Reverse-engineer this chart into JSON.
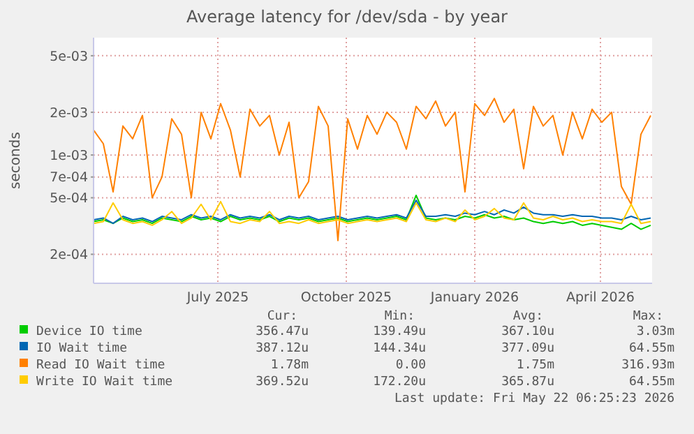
{
  "chart_data": {
    "type": "line",
    "title": "Average latency for /dev/sda - by year",
    "ylabel": "seconds",
    "log": "y",
    "grid": true,
    "legend": "bottom",
    "xlim": [
      "2025-04-17",
      "2026-05-22"
    ],
    "xticks": [
      {
        "value": "2025-07-15",
        "label": "July 2025"
      },
      {
        "value": "2025-10-15",
        "label": "October 2025"
      },
      {
        "value": "2026-01-15",
        "label": "January 2026"
      },
      {
        "value": "2026-04-15",
        "label": "April 2026"
      }
    ],
    "ylim": [
      0.000125,
      0.0067
    ],
    "yticks": [
      {
        "value": 0.0002,
        "label": "2e-04"
      },
      {
        "value": 0.0005,
        "label": "5e-04"
      },
      {
        "value": 0.0007,
        "label": "7e-04"
      },
      {
        "value": 0.001,
        "label": "1e-03"
      },
      {
        "value": 0.002,
        "label": "2e-03"
      },
      {
        "value": 0.005,
        "label": "5e-03"
      }
    ],
    "x": [
      "2025-04-17",
      "2025-04-24",
      "2025-05-01",
      "2025-05-08",
      "2025-05-15",
      "2025-05-22",
      "2025-05-29",
      "2025-06-05",
      "2025-06-12",
      "2025-06-19",
      "2025-06-26",
      "2025-07-03",
      "2025-07-10",
      "2025-07-17",
      "2025-07-24",
      "2025-07-31",
      "2025-08-07",
      "2025-08-14",
      "2025-08-21",
      "2025-08-28",
      "2025-09-04",
      "2025-09-11",
      "2025-09-18",
      "2025-09-25",
      "2025-10-02",
      "2025-10-09",
      "2025-10-16",
      "2025-10-23",
      "2025-10-30",
      "2025-11-06",
      "2025-11-13",
      "2025-11-20",
      "2025-11-27",
      "2025-12-04",
      "2025-12-11",
      "2025-12-18",
      "2025-12-25",
      "2026-01-01",
      "2026-01-08",
      "2026-01-15",
      "2026-01-22",
      "2026-01-29",
      "2026-02-05",
      "2026-02-12",
      "2026-02-19",
      "2026-02-26",
      "2026-03-05",
      "2026-03-12",
      "2026-03-19",
      "2026-03-26",
      "2026-04-02",
      "2026-04-09",
      "2026-04-16",
      "2026-04-23",
      "2026-04-30",
      "2026-05-07",
      "2026-05-14",
      "2026-05-21"
    ],
    "series": [
      {
        "name": "Device IO time",
        "color": "#00cc00",
        "values": [
          0.00034,
          0.00035,
          0.00033,
          0.00036,
          0.00034,
          0.00035,
          0.00033,
          0.00036,
          0.00035,
          0.00034,
          0.00037,
          0.00035,
          0.00036,
          0.00034,
          0.00037,
          0.00035,
          0.00036,
          0.00035,
          0.00037,
          0.00034,
          0.00036,
          0.00035,
          0.00036,
          0.00034,
          0.00035,
          0.00036,
          0.00034,
          0.00035,
          0.00036,
          0.00035,
          0.00036,
          0.00037,
          0.00035,
          0.00052,
          0.00036,
          0.00035,
          0.00036,
          0.00035,
          0.00037,
          0.00036,
          0.00038,
          0.00036,
          0.00037,
          0.00035,
          0.00036,
          0.00034,
          0.00033,
          0.00034,
          0.00033,
          0.00034,
          0.00032,
          0.00033,
          0.00032,
          0.00031,
          0.0003,
          0.00033,
          0.0003,
          0.00032
        ]
      },
      {
        "name": "IO Wait time",
        "color": "#0066b3",
        "values": [
          0.00035,
          0.00036,
          0.00033,
          0.00037,
          0.00035,
          0.00036,
          0.00034,
          0.00037,
          0.00036,
          0.00035,
          0.00038,
          0.00036,
          0.00037,
          0.00035,
          0.00038,
          0.00036,
          0.00037,
          0.00036,
          0.00038,
          0.00035,
          0.00037,
          0.00036,
          0.00037,
          0.00035,
          0.00036,
          0.00037,
          0.00035,
          0.00036,
          0.00037,
          0.00036,
          0.00037,
          0.00038,
          0.00036,
          0.00048,
          0.00037,
          0.00037,
          0.00038,
          0.00037,
          0.00039,
          0.00038,
          0.0004,
          0.00038,
          0.00041,
          0.00039,
          0.00043,
          0.00039,
          0.00038,
          0.00038,
          0.00037,
          0.00038,
          0.00037,
          0.00037,
          0.00036,
          0.00036,
          0.00035,
          0.00037,
          0.00035,
          0.00036
        ]
      },
      {
        "name": "Read IO Wait time",
        "color": "#ff8000",
        "values": [
          0.0015,
          0.0012,
          0.00055,
          0.0016,
          0.0013,
          0.0019,
          0.0005,
          0.0007,
          0.0018,
          0.0014,
          0.0005,
          0.002,
          0.0013,
          0.0023,
          0.0015,
          0.0007,
          0.0021,
          0.0016,
          0.0019,
          0.001,
          0.0017,
          0.0005,
          0.00065,
          0.0022,
          0.0016,
          0.00025,
          0.0018,
          0.0011,
          0.0019,
          0.0014,
          0.002,
          0.0017,
          0.0011,
          0.0022,
          0.0018,
          0.0024,
          0.0016,
          0.002,
          0.00055,
          0.0023,
          0.0019,
          0.0025,
          0.0017,
          0.0021,
          0.0008,
          0.0022,
          0.0016,
          0.0019,
          0.001,
          0.002,
          0.0013,
          0.0021,
          0.0017,
          0.002,
          0.0006,
          0.00045,
          0.0014,
          0.0019
        ]
      },
      {
        "name": "Write IO Wait time",
        "color": "#ffcc00",
        "values": [
          0.00033,
          0.00034,
          0.00046,
          0.00035,
          0.00033,
          0.00034,
          0.00032,
          0.00035,
          0.0004,
          0.00033,
          0.00036,
          0.00045,
          0.00035,
          0.00047,
          0.00034,
          0.00033,
          0.00035,
          0.00034,
          0.0004,
          0.00033,
          0.00034,
          0.00033,
          0.00035,
          0.00033,
          0.00034,
          0.00035,
          0.00033,
          0.00034,
          0.00035,
          0.00034,
          0.00035,
          0.00036,
          0.00034,
          0.00046,
          0.00035,
          0.00034,
          0.00036,
          0.00034,
          0.00041,
          0.00035,
          0.00037,
          0.00042,
          0.00036,
          0.00035,
          0.00046,
          0.00036,
          0.00035,
          0.00037,
          0.00035,
          0.00036,
          0.00034,
          0.00035,
          0.00034,
          0.00034,
          0.00033,
          0.00045,
          0.00033,
          0.00034
        ]
      }
    ],
    "annotations": [
      "Cur:",
      "Min:",
      "Avg:",
      "Max:",
      "356.47u",
      "139.49u",
      "367.10u",
      "3.03m",
      "387.12u",
      "144.34u",
      "377.09u",
      "64.55m",
      "1.78m",
      "0.00",
      "1.75m",
      "316.93m",
      "369.52u",
      "172.20u",
      "365.87u",
      "64.55m",
      "Last update: Fri May 22 06:25:23 2026"
    ]
  }
}
